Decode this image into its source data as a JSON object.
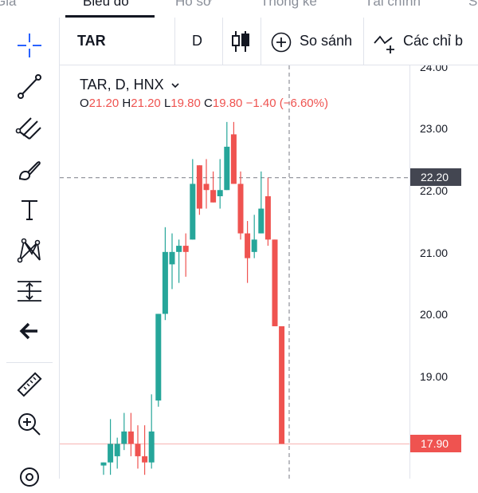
{
  "tabs": [
    "Giá",
    "Biểu đồ",
    "Hồ sơ",
    "Thống kê",
    "Tài chính",
    "S"
  ],
  "toolbar": {
    "symbol": "TAR",
    "interval": "D",
    "compare_label": "So sánh",
    "indicators_label": "Các chỉ b"
  },
  "legend": {
    "title": "TAR, D, HNX",
    "open_label": "O",
    "open": "21.20",
    "high_label": "H",
    "high": "21.20",
    "low_label": "L",
    "low": "19.80",
    "close_label": "C",
    "close": "19.80",
    "change": "−1.40 (−6.60%)"
  },
  "price_axis": {
    "ticks": [
      "24.00",
      "23.00",
      "22.00",
      "21.00",
      "20.00",
      "19.00"
    ],
    "crosshair_price": "22.20",
    "last_price": "17.90"
  },
  "sidebar_tools": [
    "crosshair-icon",
    "trend-line-icon",
    "pitchfork-icon",
    "brush-icon",
    "text-icon",
    "pattern-icon",
    "prediction-icon",
    "back-arrow-icon",
    "ruler-icon",
    "zoom-in-icon",
    "magnet-icon"
  ],
  "colors": {
    "up": "#26a69a",
    "down": "#ef5350",
    "accent": "#2962ff"
  },
  "chart_data": {
    "type": "candlestick",
    "ylim": [
      17.6,
      24.1
    ],
    "candles": [
      {
        "o": 17.55,
        "h": 17.6,
        "l": 17.4,
        "c": 17.6
      },
      {
        "o": 17.6,
        "h": 18.3,
        "l": 17.4,
        "c": 17.9
      },
      {
        "o": 17.7,
        "h": 18.0,
        "l": 17.5,
        "c": 17.9
      },
      {
        "o": 17.9,
        "h": 18.4,
        "l": 17.8,
        "c": 18.1
      },
      {
        "o": 18.1,
        "h": 18.4,
        "l": 17.7,
        "c": 17.9
      },
      {
        "o": 17.9,
        "h": 18.2,
        "l": 17.5,
        "c": 17.7
      },
      {
        "o": 17.7,
        "h": 18.2,
        "l": 17.4,
        "c": 17.6
      },
      {
        "o": 17.6,
        "h": 18.7,
        "l": 17.5,
        "c": 18.1
      },
      {
        "o": 18.6,
        "h": 20.0,
        "l": 18.5,
        "c": 20.0
      },
      {
        "o": 20.0,
        "h": 21.4,
        "l": 19.9,
        "c": 21.0
      },
      {
        "o": 20.8,
        "h": 21.3,
        "l": 20.4,
        "c": 21.0
      },
      {
        "o": 21.0,
        "h": 21.2,
        "l": 20.5,
        "c": 21.1
      },
      {
        "o": 21.1,
        "h": 21.3,
        "l": 20.6,
        "c": 21.0
      },
      {
        "o": 21.2,
        "h": 22.5,
        "l": 21.2,
        "c": 22.1
      },
      {
        "o": 22.4,
        "h": 22.4,
        "l": 21.6,
        "c": 21.7
      },
      {
        "o": 22.1,
        "h": 22.5,
        "l": 21.7,
        "c": 22.0
      },
      {
        "o": 22.0,
        "h": 22.3,
        "l": 21.8,
        "c": 21.8
      },
      {
        "o": 21.9,
        "h": 22.5,
        "l": 21.7,
        "c": 22.0
      },
      {
        "o": 22.0,
        "h": 23.1,
        "l": 22.0,
        "c": 22.7
      },
      {
        "o": 22.9,
        "h": 23.1,
        "l": 22.1,
        "c": 22.1
      },
      {
        "o": 22.1,
        "h": 22.3,
        "l": 21.2,
        "c": 21.3
      },
      {
        "o": 21.3,
        "h": 21.5,
        "l": 20.5,
        "c": 20.9
      },
      {
        "o": 21.0,
        "h": 21.6,
        "l": 20.9,
        "c": 21.2
      },
      {
        "o": 21.3,
        "h": 22.3,
        "l": 21.3,
        "c": 21.7
      },
      {
        "o": 21.9,
        "h": 22.2,
        "l": 21.1,
        "c": 21.2
      },
      {
        "o": 21.2,
        "h": 21.2,
        "l": 19.8,
        "c": 19.8
      },
      {
        "o": 19.8,
        "h": 19.8,
        "l": 17.9,
        "c": 17.9
      }
    ]
  }
}
